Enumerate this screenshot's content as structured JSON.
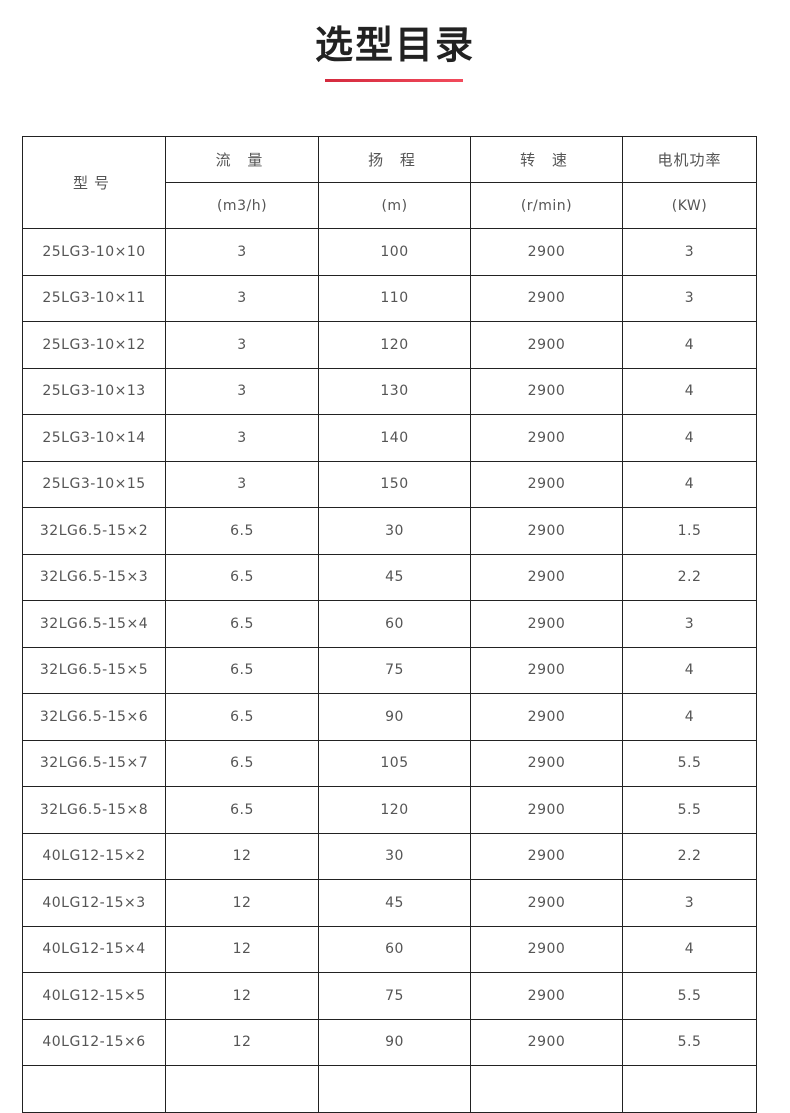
{
  "title": "选型目录",
  "accent_color": "#e03347",
  "table": {
    "headers": {
      "model": "型号",
      "flow": "流 量",
      "head": "扬 程",
      "speed": "转 速",
      "power": "电机功率",
      "flow_unit": "(m3/h)",
      "head_unit": "(m)",
      "speed_unit": "(r/min)",
      "power_unit": "(KW)"
    },
    "rows": [
      [
        "25LG3-10×10",
        "3",
        "100",
        "2900",
        "3"
      ],
      [
        "25LG3-10×11",
        "3",
        "110",
        "2900",
        "3"
      ],
      [
        "25LG3-10×12",
        "3",
        "120",
        "2900",
        "4"
      ],
      [
        "25LG3-10×13",
        "3",
        "130",
        "2900",
        "4"
      ],
      [
        "25LG3-10×14",
        "3",
        "140",
        "2900",
        "4"
      ],
      [
        "25LG3-10×15",
        "3",
        "150",
        "2900",
        "4"
      ],
      [
        "32LG6.5-15×2",
        "6.5",
        "30",
        "2900",
        "1.5"
      ],
      [
        "32LG6.5-15×3",
        "6.5",
        "45",
        "2900",
        "2.2"
      ],
      [
        "32LG6.5-15×4",
        "6.5",
        "60",
        "2900",
        "3"
      ],
      [
        "32LG6.5-15×5",
        "6.5",
        "75",
        "2900",
        "4"
      ],
      [
        "32LG6.5-15×6",
        "6.5",
        "90",
        "2900",
        "4"
      ],
      [
        "32LG6.5-15×7",
        "6.5",
        "105",
        "2900",
        "5.5"
      ],
      [
        "32LG6.5-15×8",
        "6.5",
        "120",
        "2900",
        "5.5"
      ],
      [
        "40LG12-15×2",
        "12",
        "30",
        "2900",
        "2.2"
      ],
      [
        "40LG12-15×3",
        "12",
        "45",
        "2900",
        "3"
      ],
      [
        "40LG12-15×4",
        "12",
        "60",
        "2900",
        "4"
      ],
      [
        "40LG12-15×5",
        "12",
        "75",
        "2900",
        "5.5"
      ],
      [
        "40LG12-15×6",
        "12",
        "90",
        "2900",
        "5.5"
      ]
    ]
  }
}
